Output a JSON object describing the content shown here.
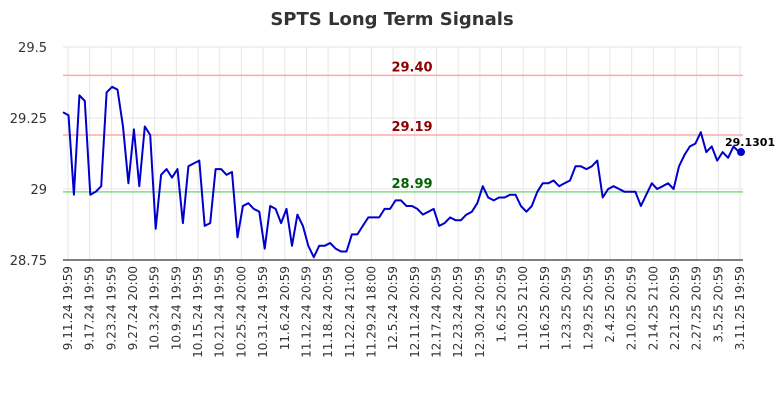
{
  "chart_data": {
    "type": "line",
    "title": "SPTS Long Term Signals",
    "xlabel": "",
    "ylabel": "",
    "ylim": [
      28.75,
      29.5
    ],
    "yticks": [
      {
        "value": 28.75,
        "label": "28.75"
      },
      {
        "value": 29.0,
        "label": "29"
      },
      {
        "value": 29.25,
        "label": "29.25"
      },
      {
        "value": 29.5,
        "label": "29.5"
      }
    ],
    "x_tick_labels": [
      "9.11.24 19:59",
      "9.17.24 19:59",
      "9.23.24 19:59",
      "9.27.24 20:00",
      "10.3.24 19:59",
      "10.9.24 19:59",
      "10.15.24 19:59",
      "10.21.24 19:59",
      "10.25.24 20:00",
      "10.31.24 19:59",
      "11.6.24 20:59",
      "11.12.24 20:59",
      "11.18.24 20:59",
      "11.22.24 21:00",
      "11.29.24 18:00",
      "12.5.24 20:59",
      "12.11.24 20:59",
      "12.17.24 20:59",
      "12.23.24 20:59",
      "12.30.24 20:59",
      "1.6.25 20:59",
      "1.10.25 21:00",
      "1.16.25 20:59",
      "1.23.25 20:59",
      "1.29.25 20:59",
      "2.4.25 20:59",
      "2.10.25 20:59",
      "2.14.25 21:00",
      "2.21.25 20:59",
      "2.27.25 20:59",
      "3.5.25 20:59",
      "3.11.25 19:59"
    ],
    "grid": true,
    "legend": "none",
    "series": [
      {
        "color": "#0000cc",
        "values": [
          29.27,
          29.26,
          28.98,
          29.33,
          29.31,
          28.98,
          28.99,
          29.01,
          29.34,
          29.36,
          29.35,
          29.22,
          29.02,
          29.21,
          29.01,
          29.22,
          29.19,
          28.86,
          29.05,
          29.07,
          29.04,
          29.07,
          28.88,
          29.08,
          29.09,
          29.1,
          28.87,
          28.88,
          29.07,
          29.07,
          29.05,
          29.06,
          28.83,
          28.94,
          28.95,
          28.93,
          28.92,
          28.79,
          28.94,
          28.93,
          28.88,
          28.93,
          28.8,
          28.91,
          28.87,
          28.8,
          28.76,
          28.8,
          28.8,
          28.81,
          28.79,
          28.78,
          28.78,
          28.84,
          28.84,
          28.87,
          28.9,
          28.9,
          28.9,
          28.93,
          28.93,
          28.96,
          28.96,
          28.94,
          28.94,
          28.93,
          28.91,
          28.92,
          28.93,
          28.87,
          28.88,
          28.9,
          28.89,
          28.89,
          28.91,
          28.92,
          28.95,
          29.01,
          28.97,
          28.96,
          28.97,
          28.97,
          28.98,
          28.98,
          28.94,
          28.92,
          28.94,
          28.99,
          29.02,
          29.02,
          29.03,
          29.01,
          29.02,
          29.03,
          29.08,
          29.08,
          29.07,
          29.08,
          29.1,
          28.97,
          29.0,
          29.01,
          29.0,
          28.99,
          28.99,
          28.99,
          28.94,
          28.98,
          29.02,
          29.0,
          29.01,
          29.02,
          29.0,
          29.08,
          29.12,
          29.15,
          29.16,
          29.2,
          29.13,
          29.15,
          29.1,
          29.13,
          29.11,
          29.15,
          29.13
        ]
      }
    ],
    "levels": [
      {
        "value": 29.4,
        "label": "29.40",
        "color": "#ffaaaa",
        "text_color": "#8b0000"
      },
      {
        "value": 29.19,
        "label": "29.19",
        "color": "#ffaaaa",
        "text_color": "#8b0000"
      },
      {
        "value": 28.99,
        "label": "28.99",
        "color": "#80dd80",
        "text_color": "#006400"
      }
    ],
    "last_point": {
      "value": 29.1301,
      "label": "29.1301",
      "color": "#0000cc"
    }
  }
}
